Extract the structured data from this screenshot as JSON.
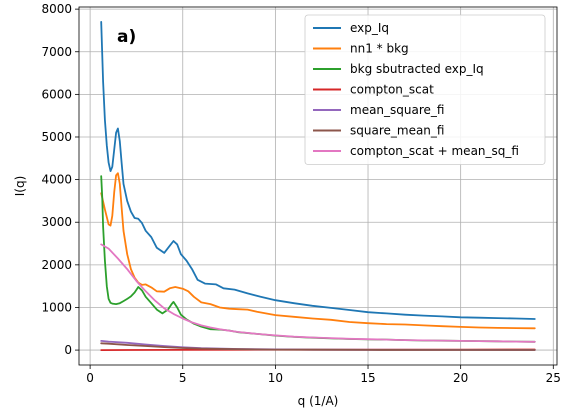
{
  "chart_data": {
    "type": "line",
    "panel_label": "a)",
    "xlabel": "q (1/A)",
    "ylabel": "I(q)",
    "xlim": [
      -0.6,
      25.2
    ],
    "ylim": [
      -350,
      8050
    ],
    "xticks": [
      0,
      5,
      10,
      15,
      20,
      25
    ],
    "yticks": [
      0,
      1000,
      2000,
      3000,
      4000,
      5000,
      6000,
      7000,
      8000
    ],
    "grid": true,
    "legend_position": "top-right",
    "series": [
      {
        "name": "exp_Iq",
        "color": "#1f77b4",
        "points": [
          [
            0.6,
            7700
          ],
          [
            0.7,
            6300
          ],
          [
            0.8,
            5400
          ],
          [
            0.9,
            4800
          ],
          [
            1.0,
            4400
          ],
          [
            1.1,
            4200
          ],
          [
            1.2,
            4300
          ],
          [
            1.3,
            4700
          ],
          [
            1.4,
            5100
          ],
          [
            1.5,
            5200
          ],
          [
            1.6,
            4900
          ],
          [
            1.7,
            4400
          ],
          [
            1.8,
            3900
          ],
          [
            2.0,
            3500
          ],
          [
            2.2,
            3250
          ],
          [
            2.4,
            3100
          ],
          [
            2.6,
            3080
          ],
          [
            2.8,
            2980
          ],
          [
            3.0,
            2800
          ],
          [
            3.3,
            2650
          ],
          [
            3.6,
            2400
          ],
          [
            4.0,
            2280
          ],
          [
            4.3,
            2450
          ],
          [
            4.5,
            2560
          ],
          [
            4.7,
            2480
          ],
          [
            4.9,
            2250
          ],
          [
            5.2,
            2100
          ],
          [
            5.5,
            1900
          ],
          [
            5.8,
            1650
          ],
          [
            6.2,
            1560
          ],
          [
            6.8,
            1540
          ],
          [
            7.2,
            1450
          ],
          [
            7.8,
            1420
          ],
          [
            8.5,
            1330
          ],
          [
            9.2,
            1250
          ],
          [
            10,
            1170
          ],
          [
            11,
            1100
          ],
          [
            12,
            1040
          ],
          [
            13,
            990
          ],
          [
            14,
            940
          ],
          [
            15,
            890
          ],
          [
            16,
            860
          ],
          [
            17,
            830
          ],
          [
            18,
            810
          ],
          [
            19,
            790
          ],
          [
            20,
            770
          ],
          [
            21,
            760
          ],
          [
            22,
            750
          ],
          [
            23,
            740
          ],
          [
            24,
            730
          ]
        ]
      },
      {
        "name": "nn1 * bkg",
        "color": "#ff7f0e",
        "points": [
          [
            0.6,
            3680
          ],
          [
            0.8,
            3300
          ],
          [
            1.0,
            2950
          ],
          [
            1.1,
            2920
          ],
          [
            1.2,
            3150
          ],
          [
            1.3,
            3700
          ],
          [
            1.4,
            4100
          ],
          [
            1.5,
            4150
          ],
          [
            1.6,
            3900
          ],
          [
            1.7,
            3350
          ],
          [
            1.8,
            2800
          ],
          [
            2.0,
            2250
          ],
          [
            2.2,
            1900
          ],
          [
            2.4,
            1700
          ],
          [
            2.6,
            1580
          ],
          [
            2.8,
            1530
          ],
          [
            3.0,
            1540
          ],
          [
            3.3,
            1470
          ],
          [
            3.6,
            1380
          ],
          [
            4.0,
            1370
          ],
          [
            4.3,
            1450
          ],
          [
            4.6,
            1480
          ],
          [
            5.0,
            1440
          ],
          [
            5.3,
            1380
          ],
          [
            5.6,
            1250
          ],
          [
            6.0,
            1120
          ],
          [
            6.5,
            1080
          ],
          [
            7.0,
            1000
          ],
          [
            7.5,
            970
          ],
          [
            8.0,
            960
          ],
          [
            8.5,
            950
          ],
          [
            9.0,
            900
          ],
          [
            10,
            820
          ],
          [
            11,
            780
          ],
          [
            12,
            740
          ],
          [
            13,
            710
          ],
          [
            14,
            660
          ],
          [
            15,
            630
          ],
          [
            16,
            610
          ],
          [
            17,
            600
          ],
          [
            18,
            580
          ],
          [
            19,
            560
          ],
          [
            20,
            545
          ],
          [
            21,
            530
          ],
          [
            22,
            520
          ],
          [
            23,
            515
          ],
          [
            24,
            510
          ]
        ]
      },
      {
        "name": "bkg sbutracted exp_Iq",
        "color": "#2ca02c",
        "points": [
          [
            0.6,
            4080
          ],
          [
            0.65,
            3600
          ],
          [
            0.7,
            2900
          ],
          [
            0.8,
            2100
          ],
          [
            0.9,
            1500
          ],
          [
            1.0,
            1200
          ],
          [
            1.1,
            1110
          ],
          [
            1.2,
            1090
          ],
          [
            1.4,
            1080
          ],
          [
            1.6,
            1100
          ],
          [
            1.8,
            1150
          ],
          [
            2.0,
            1200
          ],
          [
            2.2,
            1260
          ],
          [
            2.4,
            1350
          ],
          [
            2.6,
            1480
          ],
          [
            2.8,
            1400
          ],
          [
            3.0,
            1250
          ],
          [
            3.3,
            1100
          ],
          [
            3.6,
            950
          ],
          [
            3.9,
            860
          ],
          [
            4.2,
            950
          ],
          [
            4.4,
            1080
          ],
          [
            4.5,
            1130
          ],
          [
            4.7,
            1000
          ],
          [
            4.9,
            830
          ],
          [
            5.2,
            720
          ],
          [
            5.6,
            620
          ],
          [
            6.0,
            550
          ],
          [
            6.5,
            490
          ],
          [
            7.0,
            480
          ],
          [
            7.5,
            460
          ],
          [
            8.0,
            420
          ],
          [
            9,
            380
          ],
          [
            10,
            340
          ],
          [
            11,
            310
          ],
          [
            12,
            290
          ],
          [
            13,
            275
          ],
          [
            14,
            260
          ],
          [
            15,
            250
          ],
          [
            16,
            245
          ],
          [
            17,
            235
          ],
          [
            18,
            225
          ],
          [
            19,
            220
          ],
          [
            20,
            215
          ],
          [
            21,
            210
          ],
          [
            22,
            205
          ],
          [
            23,
            200
          ],
          [
            24,
            195
          ]
        ]
      },
      {
        "name": "compton_scat",
        "color": "#d62728",
        "points": [
          [
            0.6,
            0
          ],
          [
            2,
            2
          ],
          [
            5,
            5
          ],
          [
            10,
            8
          ],
          [
            15,
            10
          ],
          [
            20,
            12
          ],
          [
            24,
            14
          ]
        ]
      },
      {
        "name": "mean_square_fi",
        "color": "#9467bd",
        "points": [
          [
            0.6,
            215
          ],
          [
            1,
            200
          ],
          [
            2,
            170
          ],
          [
            3,
            130
          ],
          [
            4,
            95
          ],
          [
            5,
            65
          ],
          [
            6,
            45
          ],
          [
            8,
            25
          ],
          [
            10,
            15
          ],
          [
            12,
            10
          ],
          [
            15,
            6
          ],
          [
            20,
            4
          ],
          [
            24,
            3
          ]
        ]
      },
      {
        "name": "square_mean_fi",
        "color": "#8c564b",
        "points": [
          [
            0.6,
            160
          ],
          [
            1,
            150
          ],
          [
            2,
            120
          ],
          [
            3,
            95
          ],
          [
            4,
            70
          ],
          [
            5,
            50
          ],
          [
            6,
            35
          ],
          [
            8,
            20
          ],
          [
            10,
            12
          ],
          [
            12,
            8
          ],
          [
            15,
            5
          ],
          [
            20,
            3
          ],
          [
            24,
            2
          ]
        ]
      },
      {
        "name": "compton_scat + mean_sq_fi",
        "color": "#e377c2",
        "points": [
          [
            0.6,
            2480
          ],
          [
            1.0,
            2380
          ],
          [
            1.5,
            2150
          ],
          [
            2.0,
            1900
          ],
          [
            2.5,
            1620
          ],
          [
            3.0,
            1380
          ],
          [
            3.5,
            1160
          ],
          [
            4.0,
            980
          ],
          [
            4.5,
            850
          ],
          [
            5.0,
            740
          ],
          [
            5.5,
            650
          ],
          [
            6.0,
            580
          ],
          [
            6.5,
            530
          ],
          [
            7.0,
            490
          ],
          [
            7.5,
            455
          ],
          [
            8.0,
            425
          ],
          [
            9,
            380
          ],
          [
            10,
            345
          ],
          [
            11,
            315
          ],
          [
            12,
            295
          ],
          [
            13,
            280
          ],
          [
            14,
            265
          ],
          [
            15,
            255
          ],
          [
            16,
            245
          ],
          [
            17,
            235
          ],
          [
            18,
            228
          ],
          [
            19,
            222
          ],
          [
            20,
            215
          ],
          [
            21,
            210
          ],
          [
            22,
            205
          ],
          [
            23,
            200
          ],
          [
            24,
            195
          ]
        ]
      }
    ]
  }
}
